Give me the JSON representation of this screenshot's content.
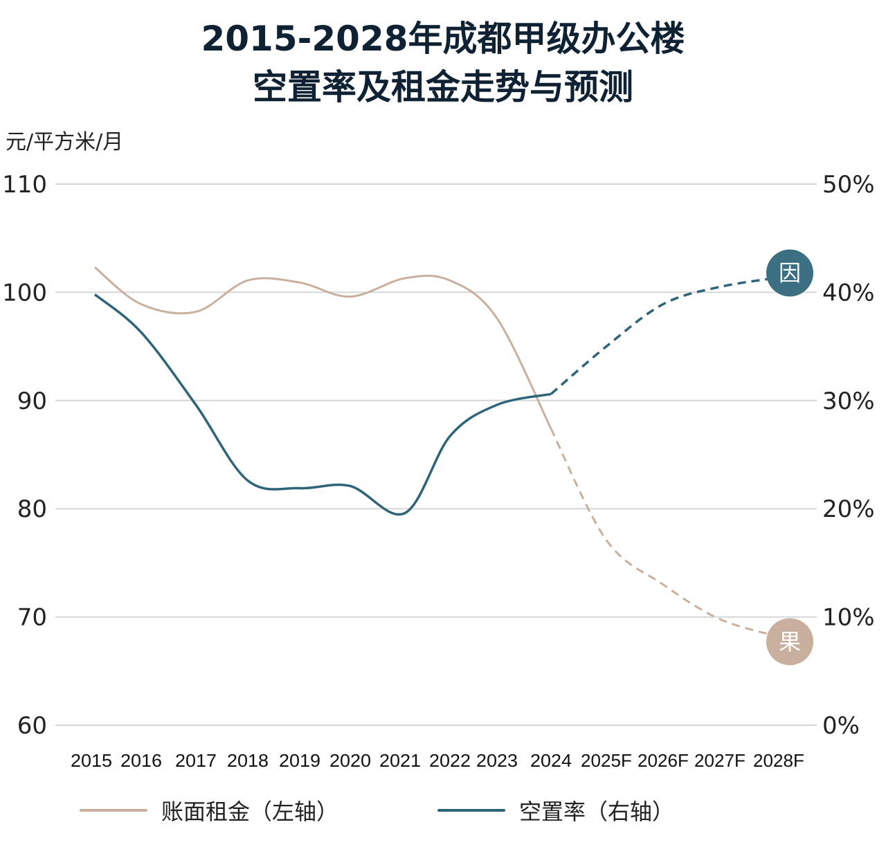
{
  "chart_data": {
    "type": "line",
    "title": [
      "2015-2028年成都甲级办公楼",
      "空置率及租金走势与预测"
    ],
    "ylabel_left": "元/平方米/月",
    "categories": [
      "2015",
      "2016",
      "2017",
      "2018",
      "2019",
      "2020",
      "2021",
      "2022",
      "2023",
      "2024",
      "2025F",
      "2026F",
      "2027F",
      "2028F"
    ],
    "ylim_left": [
      60,
      110
    ],
    "yticks_left": [
      "60",
      "70",
      "80",
      "90",
      "100",
      "110"
    ],
    "ylim_right": [
      0,
      50
    ],
    "yticks_right": [
      "0%",
      "10%",
      "20%",
      "30%",
      "40%",
      "50%"
    ],
    "grid": true,
    "legend_placement": "bottom",
    "forecast_from": "2024",
    "series": [
      {
        "name": "账面租金（左轴）",
        "axis": "left",
        "color": "#c9b09e",
        "end_marker": "果",
        "values": [
          102.3,
          98.9,
          98.2,
          101.1,
          100.9,
          99.6,
          101.3,
          101.1,
          97.6,
          87.4,
          77.1,
          73.0,
          69.8,
          68.1
        ]
      },
      {
        "name": "空置率（右轴）",
        "axis": "right",
        "color": "#2e6478",
        "end_marker": "因",
        "values": [
          39.8,
          36.3,
          29.6,
          22.6,
          21.9,
          22.1,
          19.6,
          26.7,
          29.6,
          30.6,
          35.0,
          38.9,
          40.5,
          41.4
        ]
      }
    ]
  },
  "colors": {
    "grid": "#d6d6d6",
    "text": "#222222",
    "title": "#0f2233",
    "marker_right": "#3d6f82",
    "marker_left": "#c9b09e"
  }
}
